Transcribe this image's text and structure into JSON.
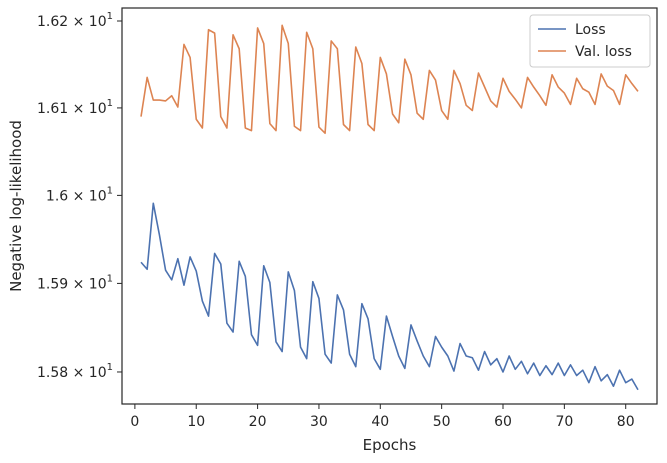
{
  "chart_data": {
    "type": "line",
    "xlabel": "Epochs",
    "ylabel": "Negative log-likelihood",
    "xlim": [
      -2.1,
      85.1
    ],
    "ylim": [
      15.764,
      16.215
    ],
    "yscale": "log",
    "x_ticks": [
      0,
      10,
      20,
      30,
      40,
      50,
      60,
      70,
      80
    ],
    "y_ticks": [
      {
        "value": 15.8,
        "mantissa": "1.58",
        "exponent": "1"
      },
      {
        "value": 15.9,
        "mantissa": "1.59",
        "exponent": "1"
      },
      {
        "value": 16.0,
        "mantissa": "1.6",
        "exponent": "1"
      },
      {
        "value": 16.1,
        "mantissa": "1.61",
        "exponent": "1"
      },
      {
        "value": 16.2,
        "mantissa": "1.62",
        "exponent": "1"
      }
    ],
    "tick_multiplier": "×",
    "tick_base": "10",
    "grid": false,
    "legend_position": "top-right",
    "series": [
      {
        "name": "Loss",
        "color": "#4c72b0",
        "x": [
          1,
          2,
          3,
          4,
          5,
          6,
          7,
          8,
          9,
          10,
          11,
          12,
          13,
          14,
          15,
          16,
          17,
          18,
          19,
          20,
          21,
          22,
          23,
          24,
          25,
          26,
          27,
          28,
          29,
          30,
          31,
          32,
          33,
          34,
          35,
          36,
          37,
          38,
          39,
          40,
          41,
          42,
          43,
          44,
          45,
          46,
          47,
          48,
          49,
          50,
          51,
          52,
          53,
          54,
          55,
          56,
          57,
          58,
          59,
          60,
          61,
          62,
          63,
          64,
          65,
          66,
          67,
          68,
          69,
          70,
          71,
          72,
          73,
          74,
          75,
          76,
          77,
          78,
          79,
          80,
          81,
          82
        ],
        "y": [
          15.924,
          15.916,
          15.991,
          15.955,
          15.915,
          15.904,
          15.928,
          15.898,
          15.93,
          15.914,
          15.88,
          15.863,
          15.934,
          15.922,
          15.855,
          15.845,
          15.925,
          15.908,
          15.842,
          15.83,
          15.92,
          15.901,
          15.834,
          15.823,
          15.913,
          15.892,
          15.828,
          15.815,
          15.902,
          15.883,
          15.82,
          15.81,
          15.887,
          15.87,
          15.82,
          15.806,
          15.877,
          15.86,
          15.815,
          15.803,
          15.863,
          15.84,
          15.818,
          15.804,
          15.853,
          15.835,
          15.818,
          15.806,
          15.84,
          15.828,
          15.818,
          15.801,
          15.832,
          15.818,
          15.816,
          15.802,
          15.823,
          15.808,
          15.815,
          15.8,
          15.818,
          15.803,
          15.812,
          15.798,
          15.81,
          15.796,
          15.807,
          15.797,
          15.81,
          15.796,
          15.808,
          15.796,
          15.802,
          15.788,
          15.806,
          15.79,
          15.797,
          15.784,
          15.802,
          15.788,
          15.792,
          15.78
        ]
      },
      {
        "name": "Val. loss",
        "color": "#dd8452",
        "x": [
          1,
          2,
          3,
          4,
          5,
          6,
          7,
          8,
          9,
          10,
          11,
          12,
          13,
          14,
          15,
          16,
          17,
          18,
          19,
          20,
          21,
          22,
          23,
          24,
          25,
          26,
          27,
          28,
          29,
          30,
          31,
          32,
          33,
          34,
          35,
          36,
          37,
          38,
          39,
          40,
          41,
          42,
          43,
          44,
          45,
          46,
          47,
          48,
          49,
          50,
          51,
          52,
          53,
          54,
          55,
          56,
          57,
          58,
          59,
          60,
          61,
          62,
          63,
          64,
          65,
          66,
          67,
          68,
          69,
          70,
          71,
          72,
          73,
          74,
          75,
          76,
          77,
          78,
          79,
          80,
          81,
          82
        ],
        "y": [
          16.09,
          16.135,
          16.109,
          16.109,
          16.108,
          16.114,
          16.101,
          16.173,
          16.158,
          16.087,
          16.077,
          16.19,
          16.186,
          16.09,
          16.077,
          16.184,
          16.168,
          16.077,
          16.074,
          16.192,
          16.174,
          16.082,
          16.074,
          16.195,
          16.174,
          16.079,
          16.074,
          16.187,
          16.168,
          16.078,
          16.071,
          16.177,
          16.168,
          16.081,
          16.074,
          16.17,
          16.151,
          16.081,
          16.074,
          16.158,
          16.139,
          16.093,
          16.083,
          16.156,
          16.138,
          16.094,
          16.087,
          16.143,
          16.132,
          16.097,
          16.087,
          16.143,
          16.128,
          16.103,
          16.097,
          16.14,
          16.124,
          16.108,
          16.101,
          16.134,
          16.119,
          16.11,
          16.1,
          16.135,
          16.124,
          16.114,
          16.103,
          16.138,
          16.124,
          16.117,
          16.104,
          16.134,
          16.122,
          16.118,
          16.104,
          16.139,
          16.125,
          16.12,
          16.104,
          16.138,
          16.128,
          16.119
        ]
      }
    ]
  }
}
